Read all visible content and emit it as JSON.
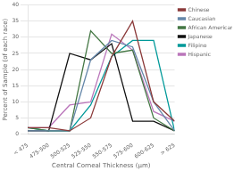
{
  "chart_data": {
    "type": "line",
    "categories": [
      "< 475",
      "475-500",
      "500-525",
      "525-550",
      "550-575",
      "575-600",
      "600-625",
      "> 625"
    ],
    "series": [
      {
        "name": "Chinese",
        "color": "#8B3A3A",
        "values": [
          2,
          2,
          1,
          5,
          24,
          35,
          10,
          4
        ]
      },
      {
        "name": "Caucasian",
        "color": "#6688AA",
        "values": [
          1,
          1,
          1,
          23,
          29,
          27,
          10,
          1
        ]
      },
      {
        "name": "African American",
        "color": "#447744",
        "values": [
          2,
          1,
          1,
          32,
          25,
          26,
          5,
          1
        ]
      },
      {
        "name": "Japanese",
        "color": "#111111",
        "values": [
          1,
          1,
          25,
          23,
          28,
          4,
          4,
          1
        ]
      },
      {
        "name": "Filipino",
        "color": "#009999",
        "values": [
          2,
          1,
          1,
          9,
          24,
          29,
          29,
          1
        ]
      },
      {
        "name": "Hispanic",
        "color": "#BB77BB",
        "values": [
          2,
          2,
          9,
          10,
          31,
          26,
          7,
          4
        ]
      }
    ],
    "xlabel": "Central Corneal Thickness (μm)",
    "ylabel": "Percent of Sample (of each race)",
    "ylim": [
      0,
      40
    ],
    "yticks": [
      0,
      5,
      10,
      15,
      20,
      25,
      30,
      35,
      40
    ],
    "grid": "y",
    "legend": "upper right"
  }
}
